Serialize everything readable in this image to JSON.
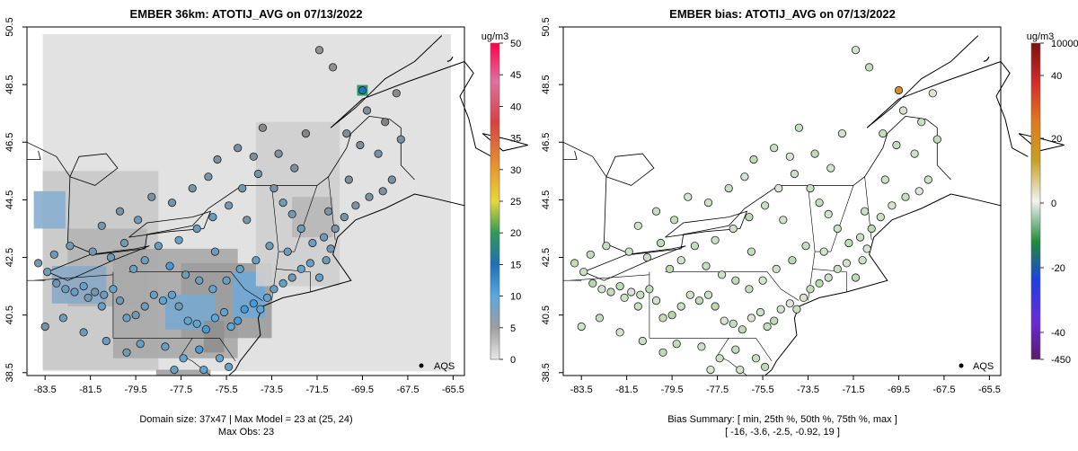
{
  "chart_data": [
    {
      "type": "map",
      "title": "EMBER 36km: ATOTIJ_AVG on 07/13/2022",
      "x_ticks": [
        "-83.5",
        "-81.5",
        "-79.5",
        "-77.5",
        "-75.5",
        "-73.5",
        "-71.5",
        "-69.5",
        "-67.5",
        "-65.5"
      ],
      "y_ticks": [
        "38.5",
        "40.5",
        "42.5",
        "44.5",
        "46.5",
        "48.5",
        "50.5"
      ],
      "xlim": [
        -84.3,
        -65.0
      ],
      "ylim": [
        38.4,
        50.5
      ],
      "legend_label": "AQS",
      "colorbar": {
        "unit": "ug/m3",
        "ticks": [
          "0",
          "5",
          "10",
          "15",
          "20",
          "25",
          "30",
          "35",
          "40",
          "45",
          "50"
        ],
        "range": [
          0,
          50
        ]
      },
      "caption_lines": [
        "Domain size: 37x47 | Max Model = 23 at (25, 24)",
        "Max Obs: 23"
      ]
    },
    {
      "type": "map",
      "title": "EMBER bias: ATOTIJ_AVG on 07/13/2022",
      "x_ticks": [
        "-83.5",
        "-81.5",
        "-79.5",
        "-77.5",
        "-75.5",
        "-73.5",
        "-71.5",
        "-69.5",
        "-67.5",
        "-65.5"
      ],
      "y_ticks": [
        "38.5",
        "40.5",
        "42.5",
        "44.5",
        "46.5",
        "48.5",
        "50.5"
      ],
      "xlim": [
        -84.3,
        -65.0
      ],
      "ylim": [
        38.4,
        50.5
      ],
      "legend_label": "AQS",
      "colorbar": {
        "unit": "ug/m3",
        "ticks": [
          "10000",
          "40",
          "20",
          "0",
          "-20",
          "-40",
          "-450"
        ]
      },
      "caption_lines": [
        "Bias Summary: [ min, 25th %, 50th %, 75th %, max ]",
        "[ -16,   -3.6,   -2.5,   -0.92,   19 ]"
      ]
    }
  ],
  "colors": {
    "blue_obs": "#5a9fd4",
    "gray_obs": "#8c8c8c",
    "bias_green": "#c6e3c0"
  }
}
